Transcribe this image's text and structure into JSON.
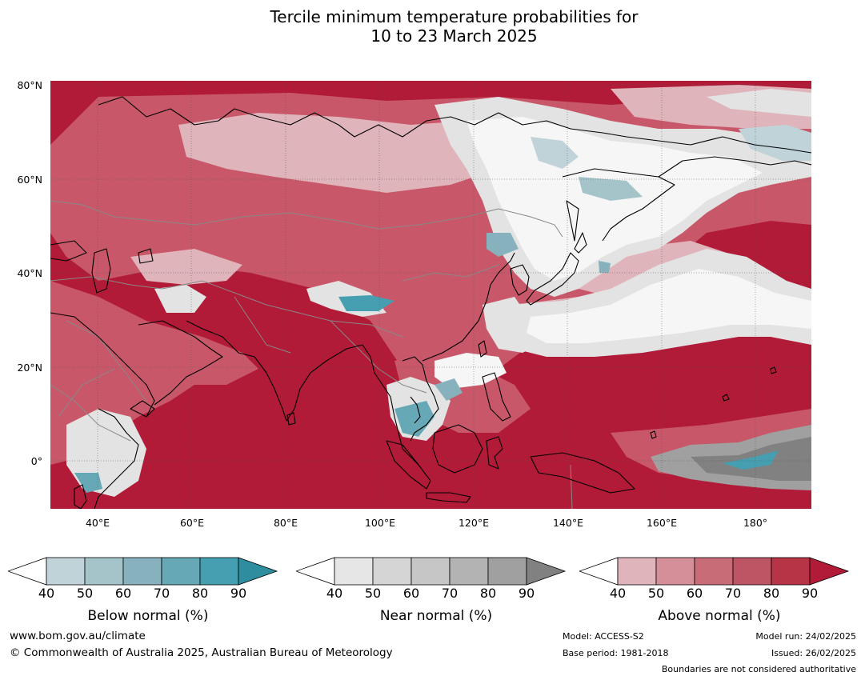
{
  "title": {
    "line1": "Tercile minimum temperature probabilities for",
    "line2": "10 to 23 March 2025"
  },
  "map": {
    "lat_labels": [
      "80°N",
      "60°N",
      "40°N",
      "20°N",
      "0°"
    ],
    "lon_labels": [
      "40°E",
      "60°E",
      "80°E",
      "100°E",
      "120°E",
      "140°E",
      "160°E",
      "180°"
    ],
    "colors": {
      "above_dominant": "#b11b37",
      "above_medium": "#c85869",
      "above_light": "#e0b4bb",
      "near_light": "#e3e3e3",
      "near_dark": "#818181",
      "below": "#469fb0",
      "coastline": "#000000",
      "boundaries": "#888888"
    }
  },
  "legends": [
    {
      "label": "Below normal (%)",
      "ticks": [
        "40",
        "50",
        "60",
        "70",
        "80",
        "90"
      ],
      "colors": [
        "#bfd3d9",
        "#a4c4ca",
        "#87b2bd",
        "#66a8b5",
        "#469fb0",
        "#2e8ea0"
      ]
    },
    {
      "label": "Near normal (%)",
      "ticks": [
        "40",
        "50",
        "60",
        "70",
        "80",
        "90"
      ],
      "colors": [
        "#e6e6e6",
        "#d5d5d5",
        "#c6c6c6",
        "#b3b3b3",
        "#a0a0a0",
        "#818181"
      ]
    },
    {
      "label": "Above normal (%)",
      "ticks": [
        "40",
        "50",
        "60",
        "70",
        "80",
        "90"
      ],
      "colors": [
        "#e0b4bb",
        "#d48f98",
        "#c86d78",
        "#be5564",
        "#b73447",
        "#b11b37"
      ]
    }
  ],
  "footer": {
    "website": "www.bom.gov.au/climate",
    "copyright": "© Commonwealth of Australia 2025, Australian Bureau of Meteorology",
    "model": "Model: ACCESS-S2",
    "base_period": "Base period: 1981-2018",
    "model_run": "Model run: 24/02/2025",
    "issued": "Issued: 26/02/2025",
    "disclaimer": "Boundaries are not considered authoritative"
  }
}
